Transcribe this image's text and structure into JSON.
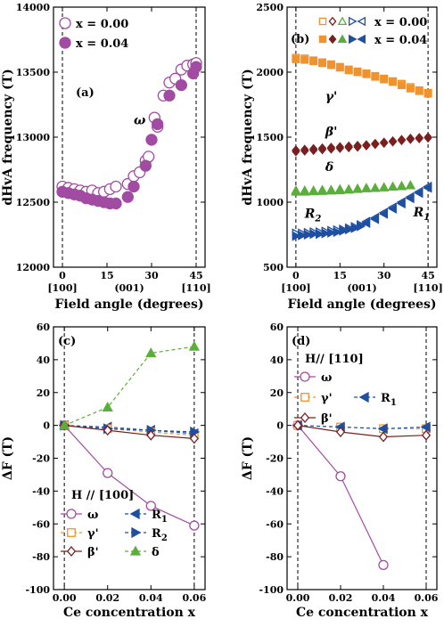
{
  "chart_data": [
    {
      "panel": "a",
      "type": "scatter",
      "panel_label": "(a)",
      "ylabel": "dHvA frequency (T)",
      "xlabel": "Field angle (degrees)",
      "xlim": [
        -3,
        48
      ],
      "ylim": [
        12000,
        14000
      ],
      "x_ticks": [
        0,
        15,
        30,
        45
      ],
      "y_ticks": [
        12000,
        12500,
        13000,
        13500,
        14000
      ],
      "direction_labels": [
        "[100]",
        "(001)",
        "[110]"
      ],
      "dashed_x": [
        0,
        45
      ],
      "legend": [
        "x = 0.00",
        "x = 0.04"
      ],
      "annotations": [
        {
          "text": "ω",
          "x": 24,
          "y": 13100,
          "color": "#a24ba2"
        }
      ],
      "series": [
        {
          "name": "x = 0.00",
          "marker": "circle-open",
          "color": "#a24ba2",
          "x": [
            0,
            2,
            4,
            6,
            8,
            10,
            12,
            14,
            16,
            18,
            22,
            24,
            26,
            28,
            29,
            31,
            32,
            34,
            36,
            38,
            40,
            42,
            44,
            45
          ],
          "y": [
            12620,
            12610,
            12600,
            12590,
            12580,
            12590,
            12570,
            12580,
            12600,
            12620,
            12640,
            12700,
            12730,
            12820,
            12850,
            13150,
            13080,
            13320,
            13420,
            13450,
            13520,
            13550,
            13560,
            13570
          ]
        },
        {
          "name": "x = 0.04",
          "marker": "circle-filled",
          "color": "#a24ba2",
          "x": [
            0,
            2,
            4,
            6,
            8,
            10,
            12,
            14,
            16,
            18,
            22,
            24,
            28,
            30,
            32,
            36,
            40,
            44,
            45
          ],
          "y": [
            12580,
            12570,
            12560,
            12550,
            12530,
            12520,
            12510,
            12500,
            12490,
            12490,
            12540,
            12620,
            12780,
            12980,
            13100,
            13320,
            13400,
            13490,
            13540
          ]
        }
      ]
    },
    {
      "panel": "b",
      "type": "scatter",
      "panel_label": "(b)",
      "ylabel": "dHvA frequency (T)",
      "xlabel": "Field angle (degrees)",
      "xlim": [
        -3,
        48
      ],
      "ylim": [
        500,
        2500
      ],
      "x_ticks": [
        0,
        15,
        30,
        45
      ],
      "y_ticks": [
        500,
        1000,
        1500,
        2000,
        2500
      ],
      "direction_labels": [
        "[100]",
        "(001)",
        "[110]"
      ],
      "dashed_x": [
        0,
        45
      ],
      "legend": [
        "x = 0.00",
        "x = 0.04"
      ],
      "annotations": [
        {
          "text": "γ'",
          "x": 10,
          "y": 1780,
          "color": "#f0922e"
        },
        {
          "text": "β'",
          "x": 10,
          "y": 1510,
          "color": "#7a1f1f"
        },
        {
          "text": "δ",
          "x": 10,
          "y": 1240,
          "color": "#5aae3a"
        },
        {
          "text": "R",
          "sub": "2",
          "x": 3,
          "y": 880,
          "color": "#1f4fa0"
        },
        {
          "text": "R",
          "sub": "1",
          "x": 40,
          "y": 890,
          "color": "#1f4fa0"
        }
      ],
      "series": [
        {
          "name": "γ' x = 0.00",
          "marker": "square-open",
          "color": "#f0922e",
          "x": [
            0,
            3,
            6,
            9,
            12,
            15,
            18,
            21,
            24,
            27,
            30,
            33,
            36,
            39,
            42,
            45
          ],
          "y": [
            2110,
            2105,
            2090,
            2075,
            2060,
            2040,
            2020,
            2005,
            1990,
            1970,
            1950,
            1930,
            1910,
            1885,
            1860,
            1840
          ]
        },
        {
          "name": "γ' x = 0.04",
          "marker": "square-filled",
          "color": "#f0922e",
          "x": [
            0,
            3,
            6,
            9,
            12,
            15,
            18,
            21,
            24,
            27,
            30,
            33,
            36,
            39,
            42,
            45
          ],
          "y": [
            2100,
            2095,
            2085,
            2070,
            2055,
            2035,
            2015,
            2000,
            1985,
            1965,
            1945,
            1925,
            1900,
            1875,
            1855,
            1835
          ]
        },
        {
          "name": "β' x = 0.00",
          "marker": "diamond-open",
          "color": "#7a1f1f",
          "x": [
            0,
            3,
            6,
            9,
            12,
            15,
            18,
            21,
            24,
            27,
            30,
            33,
            36,
            39,
            42,
            45
          ],
          "y": [
            1400,
            1405,
            1410,
            1415,
            1420,
            1425,
            1430,
            1435,
            1440,
            1450,
            1460,
            1470,
            1480,
            1490,
            1495,
            1500
          ]
        },
        {
          "name": "β' x = 0.04",
          "marker": "diamond-filled",
          "color": "#7a1f1f",
          "x": [
            0,
            3,
            6,
            9,
            12,
            15,
            18,
            21,
            24,
            27,
            30,
            33,
            36,
            39,
            42,
            45
          ],
          "y": [
            1390,
            1395,
            1400,
            1405,
            1410,
            1415,
            1420,
            1425,
            1435,
            1445,
            1455,
            1465,
            1475,
            1485,
            1490,
            1495
          ]
        },
        {
          "name": "δ x = 0.00",
          "marker": "triangle-up-open",
          "color": "#5aae3a",
          "x": [
            0,
            3,
            6,
            9,
            12,
            15,
            18,
            21,
            24,
            27,
            30,
            33,
            36,
            39
          ],
          "y": [
            1090,
            1090,
            1090,
            1095,
            1095,
            1100,
            1100,
            1105,
            1110,
            1110,
            1115,
            1120,
            1125,
            1130
          ]
        },
        {
          "name": "δ x = 0.04",
          "marker": "triangle-up-filled",
          "color": "#5aae3a",
          "x": [
            0,
            3,
            6,
            9,
            12,
            15,
            18,
            21,
            24,
            27,
            30,
            33,
            36,
            39
          ],
          "y": [
            1080,
            1080,
            1082,
            1085,
            1088,
            1090,
            1095,
            1100,
            1105,
            1108,
            1112,
            1118,
            1122,
            1128
          ]
        },
        {
          "name": "R2 x = 0.00",
          "marker": "triangle-right-open",
          "color": "#1f4fa0",
          "x": [
            0,
            2,
            4,
            6,
            8,
            10,
            12,
            14,
            16,
            18,
            20,
            22
          ],
          "y": [
            760,
            760,
            765,
            770,
            770,
            775,
            780,
            785,
            790,
            800,
            810,
            825
          ]
        },
        {
          "name": "R2 x = 0.04",
          "marker": "triangle-right-filled",
          "color": "#1f4fa0",
          "x": [
            0,
            2,
            4,
            6,
            8,
            10,
            12,
            14,
            16,
            18,
            20,
            22
          ],
          "y": [
            740,
            745,
            750,
            755,
            755,
            760,
            765,
            770,
            780,
            790,
            800,
            815
          ]
        },
        {
          "name": "R1 x = 0.00",
          "marker": "triangle-left-open",
          "color": "#1f4fa0",
          "x": [
            24,
            27,
            30,
            33,
            36,
            39,
            42,
            45
          ],
          "y": [
            850,
            880,
            920,
            960,
            1000,
            1040,
            1080,
            1120
          ]
        },
        {
          "name": "R1 x = 0.04",
          "marker": "triangle-left-filled",
          "color": "#1f4fa0",
          "x": [
            24,
            27,
            30,
            33,
            36,
            39,
            42,
            45
          ],
          "y": [
            840,
            870,
            910,
            950,
            990,
            1030,
            1070,
            1110
          ]
        }
      ]
    },
    {
      "panel": "c",
      "type": "line",
      "panel_label": "(c)",
      "ylabel": "ΔF (T)",
      "xlabel": "Ce concentration x",
      "xlim": [
        -0.005,
        0.065
      ],
      "ylim": [
        -100,
        60
      ],
      "x_ticks": [
        0.0,
        0.02,
        0.04,
        0.06
      ],
      "x_tick_labels": [
        "0.00",
        "0.02",
        "0.04",
        "0.06"
      ],
      "y_ticks": [
        -100,
        -80,
        -60,
        -40,
        -20,
        0,
        20,
        40,
        60
      ],
      "dashed_x": [
        0,
        0.06
      ],
      "legend_title": "H // [100]",
      "series": [
        {
          "name": "ω",
          "marker": "circle-open",
          "color": "#a24ba2",
          "dash": false,
          "x": [
            0,
            0.02,
            0.04,
            0.06
          ],
          "y": [
            0,
            -29,
            -49,
            -61
          ]
        },
        {
          "name": "R",
          "sub": "1",
          "marker": "triangle-left-filled",
          "color": "#1f4fa0",
          "dash": true,
          "x": [
            0,
            0.02,
            0.04,
            0.06
          ],
          "y": [
            0,
            -1,
            -3,
            -5
          ]
        },
        {
          "name": "γ'",
          "marker": "square-open",
          "color": "#f0922e",
          "dash": true,
          "x": [
            0,
            0.02,
            0.04,
            0.06
          ],
          "y": [
            0,
            -2,
            -4,
            -6
          ]
        },
        {
          "name": "R",
          "sub": "2",
          "marker": "triangle-right-filled",
          "color": "#1f4fa0",
          "dash": true,
          "x": [
            0,
            0.02,
            0.04,
            0.06
          ],
          "y": [
            0,
            -2,
            -3,
            -4
          ]
        },
        {
          "name": "β'",
          "marker": "diamond-open",
          "color": "#7a1f1f",
          "dash": false,
          "x": [
            0,
            0.02,
            0.04,
            0.06
          ],
          "y": [
            0,
            -3,
            -6,
            -8
          ]
        },
        {
          "name": "δ",
          "marker": "triangle-up-filled",
          "color": "#5aae3a",
          "dash": true,
          "x": [
            0,
            0.02,
            0.04,
            0.06
          ],
          "y": [
            0,
            11,
            44,
            48
          ]
        }
      ]
    },
    {
      "panel": "d",
      "type": "line",
      "panel_label": "(d)",
      "ylabel": "ΔF (T)",
      "xlabel": "Ce concentration x",
      "xlim": [
        -0.005,
        0.065
      ],
      "ylim": [
        -100,
        60
      ],
      "x_ticks": [
        0.0,
        0.02,
        0.04,
        0.06
      ],
      "x_tick_labels": [
        "0.00",
        "0.02",
        "0.04",
        "0.06"
      ],
      "y_ticks": [
        -100,
        -80,
        -60,
        -40,
        -20,
        0,
        20,
        40,
        60
      ],
      "dashed_x": [
        0,
        0.06
      ],
      "legend_title": "H// [110]",
      "series": [
        {
          "name": "ω",
          "marker": "circle-open",
          "color": "#a24ba2",
          "dash": false,
          "x": [
            0,
            0.02,
            0.04
          ],
          "y": [
            0,
            -31,
            -85
          ]
        },
        {
          "name": "γ'",
          "marker": "square-open",
          "color": "#f0922e",
          "dash": true,
          "x": [
            0,
            0.02,
            0.04,
            0.06
          ],
          "y": [
            0,
            -1,
            -2,
            -2
          ]
        },
        {
          "name": "R",
          "sub": "1",
          "marker": "triangle-left-filled",
          "color": "#1f4fa0",
          "dash": true,
          "x": [
            0,
            0.02,
            0.04,
            0.06
          ],
          "y": [
            0,
            -1,
            -2,
            -1
          ]
        },
        {
          "name": "β'",
          "marker": "diamond-open",
          "color": "#7a1f1f",
          "dash": false,
          "x": [
            0,
            0.02,
            0.04,
            0.06
          ],
          "y": [
            0,
            -4,
            -7,
            -6
          ]
        }
      ]
    }
  ]
}
